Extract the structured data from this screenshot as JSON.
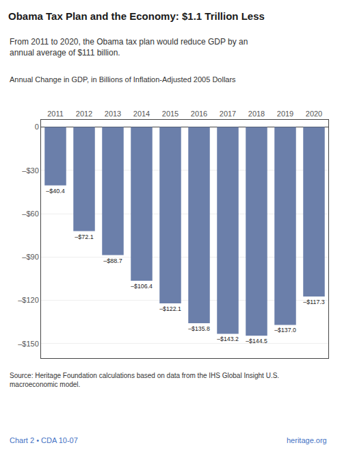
{
  "chart_data": {
    "type": "bar",
    "title": "Obama Tax Plan and the Economy: $1.1 Trillion Less",
    "subtitle": "From 2011 to 2020, the Obama tax plan would reduce GDP by an\nannual average of $111 billion.",
    "ylabel": "Annual Change in GDP, in Billions of Inflation-Adjusted 2005 Dollars",
    "categories": [
      "2011",
      "2012",
      "2013",
      "2014",
      "2015",
      "2016",
      "2017",
      "2018",
      "2019",
      "2020"
    ],
    "values": [
      -40.4,
      -72.1,
      -88.7,
      -106.4,
      -122.1,
      -135.8,
      -143.2,
      -144.5,
      -137.0,
      -117.3
    ],
    "value_labels": [
      "–$40.4",
      "–$72.1",
      "–$88.7",
      "–$106.4",
      "–$122.1",
      "–$135.8",
      "–$143.2",
      "–$144.5",
      "–$137.0",
      "–$117.3"
    ],
    "data_labels": true,
    "color": "#6b7faa",
    "ylim": [
      -160,
      5
    ],
    "yticks": [
      0,
      {
        "value": -30,
        "label": "–$30"
      },
      {
        "value": -60,
        "label": "–$60"
      },
      {
        "value": -90,
        "label": "–$90"
      },
      {
        "value": -120,
        "label": "–$120"
      },
      {
        "value": -150,
        "label": "–$150"
      }
    ],
    "grid": true,
    "annotations": [
      "Source: Heritage Foundation calculations based on data from the IHS Global Insight U.S.\nmacroeconomic model.",
      "Chart 2 • CDA 10-07",
      "heritage.org"
    ]
  }
}
